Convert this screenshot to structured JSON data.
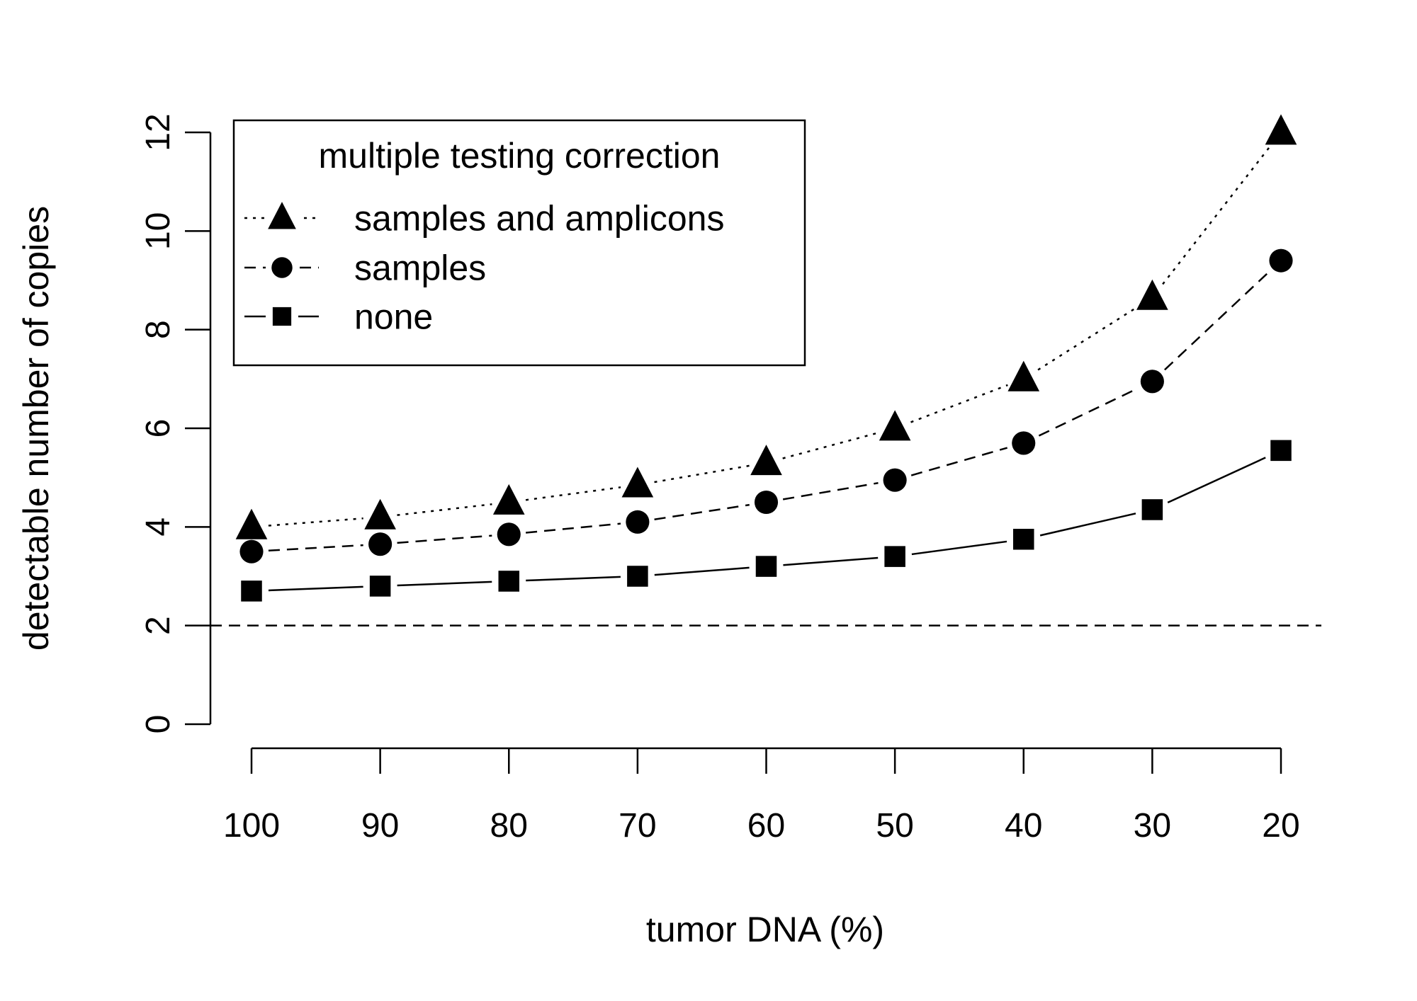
{
  "chart_data": {
    "type": "line",
    "title": "",
    "xlabel": "tumor DNA (%)",
    "ylabel": "detectable number of copies",
    "x": [
      100,
      90,
      80,
      70,
      60,
      50,
      40,
      30,
      20
    ],
    "x_tick_labels": [
      "100",
      "90",
      "80",
      "70",
      "60",
      "50",
      "40",
      "30",
      "20"
    ],
    "x_reversed": true,
    "ylim": [
      0,
      12
    ],
    "y_ticks": [
      0,
      2,
      4,
      6,
      8,
      10,
      12
    ],
    "y_tick_labels": [
      "0",
      "2",
      "4",
      "6",
      "8",
      "10",
      "12"
    ],
    "reference_line": {
      "y": 2,
      "style": "dashed"
    },
    "legend": {
      "title": "multiple testing correction",
      "position": "top-left"
    },
    "series": [
      {
        "name": "samples and amplicons",
        "marker": "triangle",
        "line_style": "dotted",
        "values": [
          4.0,
          4.2,
          4.5,
          4.85,
          5.3,
          6.0,
          7.0,
          8.65,
          12.0
        ]
      },
      {
        "name": "samples",
        "marker": "circle",
        "line_style": "dashed",
        "values": [
          3.5,
          3.65,
          3.85,
          4.1,
          4.5,
          4.95,
          5.7,
          6.95,
          9.4
        ]
      },
      {
        "name": "none",
        "marker": "square",
        "line_style": "solid",
        "values": [
          2.7,
          2.8,
          2.9,
          3.0,
          3.2,
          3.4,
          3.75,
          4.35,
          5.55
        ]
      }
    ],
    "colors": {
      "ink": "#000000",
      "background": "#ffffff"
    }
  }
}
